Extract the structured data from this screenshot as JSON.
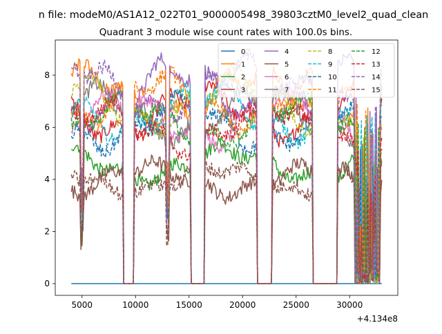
{
  "chart_data": {
    "type": "line",
    "suptitle": "n file: modeM0/AS1A12_022T01_9000005498_39803cztM0_level2_quad_clean",
    "title": "Quadrant 3 module wise count rates with 100.0s bins.",
    "xlabel": "",
    "ylabel": "",
    "x_offset_text": "+4.134e8",
    "xlim": [
      2500,
      34500
    ],
    "ylim": [
      -0.45,
      9.35
    ],
    "xticks": [
      5000,
      10000,
      15000,
      20000,
      25000,
      30000
    ],
    "xtick_labels": [
      "5000",
      "10000",
      "15000",
      "20000",
      "25000",
      "30000"
    ],
    "yticks": [
      0,
      2,
      4,
      6,
      8
    ],
    "ytick_labels": [
      "0",
      "2",
      "4",
      "6",
      "8"
    ],
    "grid": false,
    "legend": {
      "placement": "top-right",
      "columns": 4
    },
    "x_range": [
      4000,
      33000
    ],
    "gaps": [
      [
        8850,
        9800
      ],
      [
        15200,
        16400
      ],
      [
        21350,
        22700
      ],
      [
        26600,
        28800
      ]
    ],
    "gap_noise_regions": [
      [
        30500,
        32800
      ]
    ],
    "spike_times": [
      5000,
      13000,
      31000
    ],
    "series": [
      {
        "name": "0",
        "color": "#1f77b4",
        "dash": "solid",
        "level": 0.0
      },
      {
        "name": "1",
        "color": "#ff7f0e",
        "dash": "solid",
        "level": 7.2
      },
      {
        "name": "2",
        "color": "#2ca02c",
        "dash": "solid",
        "level": 4.6
      },
      {
        "name": "3",
        "color": "#d62728",
        "dash": "solid",
        "level": 6.6
      },
      {
        "name": "4",
        "color": "#9467bd",
        "dash": "solid",
        "level": 7.4
      },
      {
        "name": "5",
        "color": "#8c564b",
        "dash": "solid",
        "level": 4.0
      },
      {
        "name": "6",
        "color": "#e377c2",
        "dash": "solid",
        "level": 6.3
      },
      {
        "name": "7",
        "color": "#7f7f7f",
        "dash": "solid",
        "level": 6.5
      },
      {
        "name": "8",
        "color": "#bcbd22",
        "dash": "dashed",
        "level": 7.0
      },
      {
        "name": "9",
        "color": "#17becf",
        "dash": "dashed",
        "level": 6.6
      },
      {
        "name": "10",
        "color": "#1f77b4",
        "dash": "dashed",
        "level": 6.1
      },
      {
        "name": "11",
        "color": "#ff7f0e",
        "dash": "dashed",
        "level": 7.0
      },
      {
        "name": "12",
        "color": "#2ca02c",
        "dash": "dashed",
        "level": 6.2
      },
      {
        "name": "13",
        "color": "#d62728",
        "dash": "dashed",
        "level": 6.0
      },
      {
        "name": "14",
        "color": "#9467bd",
        "dash": "dashed",
        "level": 7.5
      },
      {
        "name": "15",
        "color": "#8c564b",
        "dash": "dashed",
        "level": 4.0
      }
    ]
  }
}
